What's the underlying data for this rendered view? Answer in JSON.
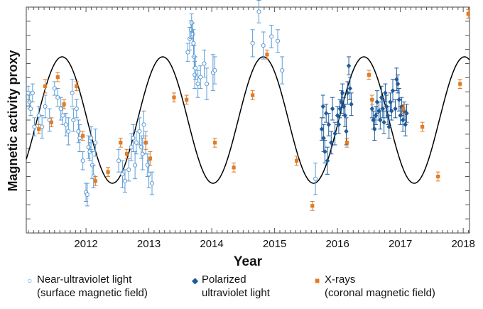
{
  "chart_data": {
    "type": "scatter",
    "title": "",
    "xlabel": "Year",
    "ylabel": "Magnetic activity proxy",
    "xlim": [
      2011.05,
      2018.1
    ],
    "ylim": [
      0,
      1
    ],
    "xticks": [
      "2012",
      "2013",
      "2014",
      "2015",
      "2016",
      "2017",
      "2018"
    ],
    "model_curve": {
      "name": "cycle",
      "period_years": 1.6,
      "center": 0.5,
      "amplitude": 0.28,
      "phase_ref_year": 2011.62,
      "color": "#000000"
    },
    "legend": [
      {
        "key": "nuv",
        "label_line1": "Near-ultraviolet light",
        "label_line2": "(surface magnetic field)"
      },
      {
        "key": "pol",
        "label_line1": "Polarized",
        "label_line2": "ultraviolet light"
      },
      {
        "key": "xray",
        "label_line1": "X-rays",
        "label_line2": "(coronal magnetic field)"
      }
    ],
    "series": [
      {
        "name": "Near-ultraviolet light (surface magnetic field)",
        "marker": "open-circle",
        "color": "#5b9bd5",
        "points": [
          [
            2011.08,
            0.62,
            0.03
          ],
          [
            2011.1,
            0.58,
            0.03
          ],
          [
            2011.12,
            0.55,
            0.03
          ],
          [
            2011.15,
            0.62,
            0.04
          ],
          [
            2011.18,
            0.47,
            0.04
          ],
          [
            2011.25,
            0.52,
            0.04
          ],
          [
            2011.3,
            0.47,
            0.05
          ],
          [
            2011.35,
            0.56,
            0.05
          ],
          [
            2011.42,
            0.5,
            0.05
          ],
          [
            2011.5,
            0.64,
            0.03
          ],
          [
            2011.55,
            0.6,
            0.04
          ],
          [
            2011.6,
            0.55,
            0.05
          ],
          [
            2011.63,
            0.52,
            0.04
          ],
          [
            2011.68,
            0.48,
            0.05
          ],
          [
            2011.72,
            0.45,
            0.06
          ],
          [
            2011.78,
            0.62,
            0.06
          ],
          [
            2011.8,
            0.5,
            0.05
          ],
          [
            2011.85,
            0.55,
            0.04
          ],
          [
            2011.88,
            0.45,
            0.05
          ],
          [
            2011.9,
            0.42,
            0.06
          ],
          [
            2011.95,
            0.32,
            0.04
          ],
          [
            2012.0,
            0.18,
            0.04
          ],
          [
            2012.02,
            0.17,
            0.05
          ],
          [
            2012.04,
            0.38,
            0.05
          ],
          [
            2012.06,
            0.36,
            0.04
          ],
          [
            2012.08,
            0.42,
            0.05
          ],
          [
            2012.1,
            0.3,
            0.06
          ],
          [
            2012.12,
            0.25,
            0.05
          ],
          [
            2012.15,
            0.4,
            0.06
          ],
          [
            2012.52,
            0.32,
            0.05
          ],
          [
            2012.58,
            0.26,
            0.06
          ],
          [
            2012.62,
            0.23,
            0.05
          ],
          [
            2012.68,
            0.28,
            0.05
          ],
          [
            2012.72,
            0.38,
            0.06
          ],
          [
            2012.75,
            0.42,
            0.06
          ],
          [
            2012.78,
            0.3,
            0.06
          ],
          [
            2012.8,
            0.4,
            0.05
          ],
          [
            2012.85,
            0.45,
            0.06
          ],
          [
            2012.88,
            0.38,
            0.05
          ],
          [
            2012.9,
            0.35,
            0.07
          ],
          [
            2012.92,
            0.48,
            0.06
          ],
          [
            2012.95,
            0.4,
            0.05
          ],
          [
            2012.98,
            0.3,
            0.05
          ],
          [
            2013.0,
            0.26,
            0.06
          ],
          [
            2013.05,
            0.22,
            0.05
          ],
          [
            2013.62,
            0.8,
            0.04
          ],
          [
            2013.65,
            0.86,
            0.05
          ],
          [
            2013.67,
            0.9,
            0.04
          ],
          [
            2013.68,
            0.93,
            0.04
          ],
          [
            2013.7,
            0.88,
            0.05
          ],
          [
            2013.71,
            0.84,
            0.06
          ],
          [
            2013.72,
            0.78,
            0.05
          ],
          [
            2013.73,
            0.7,
            0.06
          ],
          [
            2013.74,
            0.73,
            0.05
          ],
          [
            2013.78,
            0.66,
            0.06
          ],
          [
            2013.82,
            0.69,
            0.05
          ],
          [
            2013.88,
            0.75,
            0.06
          ],
          [
            2013.92,
            0.66,
            0.07
          ],
          [
            2014.02,
            0.71,
            0.08
          ],
          [
            2014.05,
            0.72,
            0.06
          ],
          [
            2014.65,
            0.84,
            0.06
          ],
          [
            2014.75,
            0.98,
            0.05
          ],
          [
            2014.82,
            0.83,
            0.06
          ],
          [
            2014.95,
            0.87,
            0.05
          ],
          [
            2015.05,
            0.85,
            0.05
          ],
          [
            2015.12,
            0.72,
            0.06
          ],
          [
            2015.65,
            0.24,
            0.07
          ]
        ]
      },
      {
        "name": "Polarized ultraviolet light",
        "marker": "filled-diamond",
        "color": "#1f5b99",
        "points": [
          [
            2015.75,
            0.46,
            0.05
          ],
          [
            2015.77,
            0.56,
            0.05
          ],
          [
            2015.78,
            0.42,
            0.06
          ],
          [
            2015.8,
            0.36,
            0.05
          ],
          [
            2015.82,
            0.53,
            0.04
          ],
          [
            2015.84,
            0.32,
            0.06
          ],
          [
            2015.86,
            0.48,
            0.05
          ],
          [
            2015.9,
            0.4,
            0.05
          ],
          [
            2015.92,
            0.55,
            0.05
          ],
          [
            2015.96,
            0.44,
            0.05
          ],
          [
            2016.0,
            0.52,
            0.04
          ],
          [
            2016.02,
            0.48,
            0.04
          ],
          [
            2016.04,
            0.55,
            0.04
          ],
          [
            2016.06,
            0.58,
            0.05
          ],
          [
            2016.08,
            0.62,
            0.04
          ],
          [
            2016.1,
            0.56,
            0.04
          ],
          [
            2016.12,
            0.52,
            0.05
          ],
          [
            2016.14,
            0.45,
            0.06
          ],
          [
            2016.16,
            0.62,
            0.05
          ],
          [
            2016.18,
            0.74,
            0.04
          ],
          [
            2016.2,
            0.64,
            0.05
          ],
          [
            2016.22,
            0.57,
            0.05
          ],
          [
            2016.55,
            0.55,
            0.04
          ],
          [
            2016.57,
            0.5,
            0.04
          ],
          [
            2016.59,
            0.46,
            0.05
          ],
          [
            2016.61,
            0.52,
            0.04
          ],
          [
            2016.63,
            0.58,
            0.05
          ],
          [
            2016.66,
            0.54,
            0.04
          ],
          [
            2016.68,
            0.5,
            0.04
          ],
          [
            2016.7,
            0.6,
            0.05
          ],
          [
            2016.72,
            0.55,
            0.04
          ],
          [
            2016.74,
            0.49,
            0.05
          ],
          [
            2016.76,
            0.62,
            0.04
          ],
          [
            2016.78,
            0.56,
            0.05
          ],
          [
            2016.8,
            0.52,
            0.04
          ],
          [
            2016.82,
            0.47,
            0.05
          ],
          [
            2016.84,
            0.58,
            0.04
          ],
          [
            2016.86,
            0.54,
            0.04
          ],
          [
            2016.88,
            0.63,
            0.05
          ],
          [
            2016.92,
            0.55,
            0.04
          ],
          [
            2016.94,
            0.68,
            0.05
          ],
          [
            2016.96,
            0.66,
            0.04
          ],
          [
            2016.98,
            0.59,
            0.05
          ],
          [
            2017.0,
            0.52,
            0.04
          ],
          [
            2017.02,
            0.56,
            0.04
          ],
          [
            2017.04,
            0.5,
            0.05
          ],
          [
            2017.06,
            0.54,
            0.04
          ],
          [
            2017.08,
            0.48,
            0.05
          ],
          [
            2017.1,
            0.53,
            0.04
          ]
        ]
      },
      {
        "name": "X-rays (coronal magnetic field)",
        "marker": "filled-square",
        "color": "#e07b26",
        "points": [
          [
            2011.25,
            0.46,
            0.02
          ],
          [
            2011.35,
            0.65,
            0.03
          ],
          [
            2011.45,
            0.49,
            0.02
          ],
          [
            2011.55,
            0.69,
            0.02
          ],
          [
            2011.65,
            0.57,
            0.02
          ],
          [
            2011.85,
            0.65,
            0.02
          ],
          [
            2011.95,
            0.43,
            0.02
          ],
          [
            2012.15,
            0.23,
            0.02
          ],
          [
            2012.35,
            0.27,
            0.02
          ],
          [
            2012.55,
            0.4,
            0.02
          ],
          [
            2012.65,
            0.35,
            0.02
          ],
          [
            2012.95,
            0.4,
            0.03
          ],
          [
            2013.02,
            0.33,
            0.03
          ],
          [
            2013.4,
            0.6,
            0.02
          ],
          [
            2013.6,
            0.59,
            0.02
          ],
          [
            2014.05,
            0.4,
            0.02
          ],
          [
            2014.35,
            0.29,
            0.02
          ],
          [
            2014.65,
            0.61,
            0.02
          ],
          [
            2014.88,
            0.79,
            0.02
          ],
          [
            2015.35,
            0.32,
            0.02
          ],
          [
            2015.6,
            0.12,
            0.02
          ],
          [
            2016.15,
            0.4,
            0.02
          ],
          [
            2016.5,
            0.7,
            0.02
          ],
          [
            2016.55,
            0.59,
            0.02
          ],
          [
            2017.05,
            0.55,
            0.02
          ],
          [
            2017.35,
            0.47,
            0.02
          ],
          [
            2017.6,
            0.25,
            0.02
          ],
          [
            2017.95,
            0.66,
            0.02
          ],
          [
            2018.08,
            0.97,
            0.02
          ]
        ]
      }
    ]
  }
}
